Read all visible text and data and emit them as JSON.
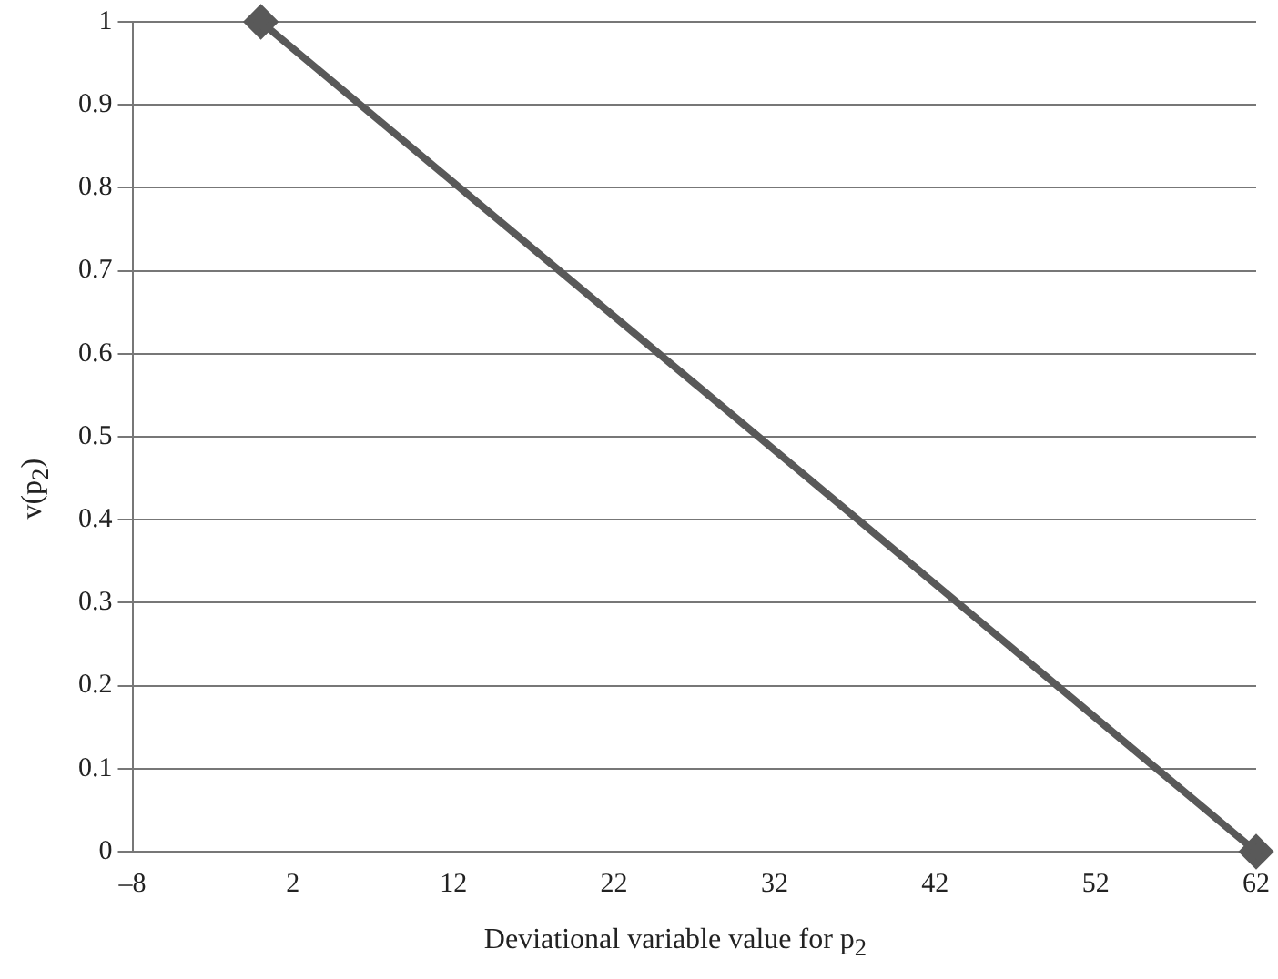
{
  "chart_data": {
    "type": "line",
    "xlabel": "Deviational variable value for p$_{2}$",
    "ylabel": "v(p$_{2}$)",
    "x": [
      0,
      62
    ],
    "series": [
      {
        "color": "#595959",
        "values": [
          1,
          0
        ]
      }
    ],
    "xlim": [
      -8,
      62
    ],
    "xticks": [
      {
        "value": -8,
        "label": "–8"
      },
      2,
      12,
      22,
      32,
      42,
      52,
      62
    ],
    "ylim": [
      0,
      1
    ],
    "yticks": [
      0,
      0.1,
      0.2,
      0.3,
      0.4,
      0.5,
      0.6,
      0.7,
      0.8,
      0.9,
      1
    ],
    "grid": "y",
    "marker": "diamond",
    "line_style": "solid",
    "legend": false
  }
}
